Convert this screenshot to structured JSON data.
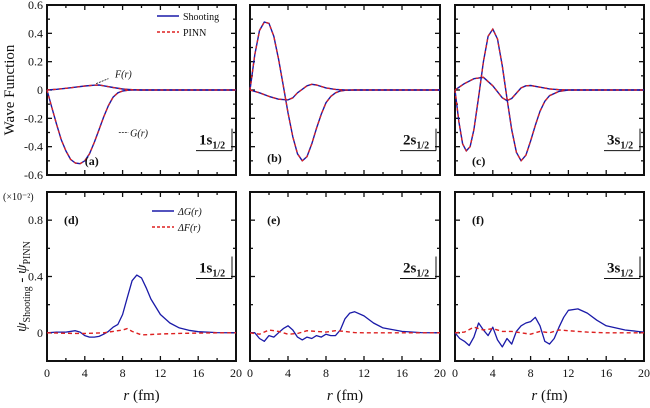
{
  "chart_data": [
    {
      "id": "a",
      "type": "line",
      "panel_label": "(a)",
      "state": "1s",
      "state_sub": "1/2",
      "xlim": [
        0,
        20
      ],
      "ylim": [
        -0.6,
        0.6
      ],
      "xticks": [
        0,
        4,
        8,
        12,
        16,
        20
      ],
      "yticks": [
        -0.6,
        -0.4,
        -0.2,
        0,
        0.2,
        0.4,
        0.6
      ],
      "ytick_labels": [
        "-0.6",
        "-0.4",
        "-0.2",
        "0",
        "0.2",
        "0.4",
        "0.6"
      ],
      "ylabel": "Wave Function",
      "legend": [
        "Shooting",
        "PINN"
      ],
      "annotations": [
        "F(r)",
        "G(r)"
      ],
      "series": [
        {
          "name": "G(r)",
          "x": [
            0,
            0.5,
            1,
            1.5,
            2,
            2.5,
            3,
            3.5,
            4,
            4.5,
            5,
            5.5,
            6,
            6.5,
            7,
            7.5,
            8,
            8.5,
            9,
            10,
            12,
            20
          ],
          "y": [
            0,
            -0.12,
            -0.24,
            -0.35,
            -0.43,
            -0.49,
            -0.515,
            -0.52,
            -0.5,
            -0.45,
            -0.37,
            -0.28,
            -0.19,
            -0.11,
            -0.05,
            -0.02,
            -0.007,
            -0.002,
            0,
            0,
            0,
            0
          ]
        },
        {
          "name": "F(r)",
          "x": [
            0,
            1,
            2,
            3,
            4,
            5,
            5.5,
            6,
            7,
            8,
            9,
            10,
            12,
            20
          ],
          "y": [
            0,
            0.005,
            0.012,
            0.02,
            0.028,
            0.034,
            0.035,
            0.03,
            0.018,
            0.007,
            0.002,
            0,
            0,
            0
          ]
        }
      ]
    },
    {
      "id": "b",
      "type": "line",
      "panel_label": "(b)",
      "state": "2s",
      "state_sub": "1/2",
      "xlim": [
        0,
        20
      ],
      "ylim": [
        -0.6,
        0.6
      ],
      "xticks": [
        0,
        4,
        8,
        12,
        16,
        20
      ],
      "yticks": [
        -0.6,
        -0.4,
        -0.2,
        0,
        0.2,
        0.4,
        0.6
      ],
      "series": [
        {
          "name": "G(r)",
          "x": [
            0,
            0.5,
            1,
            1.5,
            2,
            2.5,
            3,
            3.5,
            4,
            4.5,
            5,
            5.5,
            6,
            6.5,
            7,
            7.5,
            8,
            8.5,
            9,
            9.5,
            10,
            11,
            20
          ],
          "y": [
            0,
            0.25,
            0.42,
            0.48,
            0.47,
            0.38,
            0.22,
            0.03,
            -0.16,
            -0.33,
            -0.45,
            -0.5,
            -0.47,
            -0.38,
            -0.27,
            -0.17,
            -0.09,
            -0.045,
            -0.02,
            -0.007,
            -0.002,
            0,
            0
          ]
        },
        {
          "name": "F(r)",
          "x": [
            0,
            1,
            2,
            3,
            4,
            4.5,
            5,
            6,
            6.5,
            7,
            8,
            9,
            10,
            20
          ],
          "y": [
            0,
            -0.02,
            -0.045,
            -0.065,
            -0.07,
            -0.055,
            -0.02,
            0.03,
            0.04,
            0.035,
            0.015,
            0.004,
            0,
            0
          ]
        }
      ]
    },
    {
      "id": "c",
      "type": "line",
      "panel_label": "(c)",
      "state": "3s",
      "state_sub": "1/2",
      "xlim": [
        0,
        20
      ],
      "ylim": [
        -0.6,
        0.6
      ],
      "xticks": [
        0,
        4,
        8,
        12,
        16,
        20
      ],
      "yticks": [
        -0.6,
        -0.4,
        -0.2,
        0,
        0.2,
        0.4,
        0.6
      ],
      "series": [
        {
          "name": "G(r)",
          "x": [
            0,
            0.4,
            0.8,
            1.2,
            1.6,
            2,
            2.5,
            3,
            3.5,
            4,
            4.5,
            5,
            5.5,
            6,
            6.5,
            7,
            7.5,
            8,
            8.5,
            9,
            9.5,
            10,
            11,
            12,
            20
          ],
          "y": [
            0,
            -0.22,
            -0.38,
            -0.43,
            -0.4,
            -0.28,
            -0.05,
            0.2,
            0.38,
            0.43,
            0.36,
            0.17,
            -0.06,
            -0.28,
            -0.44,
            -0.5,
            -0.46,
            -0.36,
            -0.25,
            -0.15,
            -0.08,
            -0.04,
            -0.01,
            0,
            0
          ]
        },
        {
          "name": "F(r)",
          "x": [
            0,
            1,
            2,
            3,
            4,
            5,
            5.5,
            6,
            7,
            7.5,
            8,
            9,
            10,
            11,
            12,
            20
          ],
          "y": [
            0,
            0.045,
            0.08,
            0.09,
            0.03,
            -0.055,
            -0.075,
            -0.06,
            0.015,
            0.03,
            0.032,
            0.02,
            0.008,
            0.002,
            0,
            0
          ]
        }
      ]
    },
    {
      "id": "d",
      "type": "line",
      "panel_label": "(d)",
      "state": "1s",
      "state_sub": "1/2",
      "xlim": [
        0,
        20
      ],
      "ylim": [
        -0.2,
        1.0
      ],
      "xticks": [
        0,
        4,
        8,
        12,
        16,
        20
      ],
      "yticks": [
        0,
        0.4,
        0.8
      ],
      "ytick_labels": [
        "0",
        "0.4",
        "0.8"
      ],
      "xlabel": "r (fm)",
      "ylabel": "ψShooting - ψPINN",
      "scale_note": "(×10⁻²)",
      "legend": [
        "ΔG(r)",
        "ΔF(r)"
      ],
      "series": [
        {
          "name": "ΔG(r)",
          "x": [
            0,
            1,
            2,
            3,
            3.5,
            4,
            4.5,
            5,
            5.5,
            6,
            6.5,
            7,
            7.5,
            8,
            8.5,
            9,
            9.5,
            10,
            10.5,
            11,
            12,
            13,
            14,
            15,
            16,
            18,
            20
          ],
          "y": [
            0,
            0.005,
            0.005,
            0.015,
            0.005,
            -0.02,
            -0.03,
            -0.03,
            -0.025,
            -0.01,
            0.01,
            0.04,
            0.06,
            0.13,
            0.25,
            0.37,
            0.41,
            0.39,
            0.32,
            0.24,
            0.13,
            0.07,
            0.035,
            0.018,
            0.008,
            0.002,
            0
          ]
        },
        {
          "name": "ΔF(r)",
          "x": [
            0,
            2,
            4,
            6,
            7,
            8,
            8.5,
            9,
            10,
            11,
            12,
            14,
            16,
            18,
            20
          ],
          "y": [
            0,
            -0.003,
            -0.005,
            0,
            0.01,
            0.02,
            0.03,
            0.01,
            -0.015,
            -0.012,
            -0.008,
            -0.004,
            -0.002,
            0,
            0
          ]
        }
      ]
    },
    {
      "id": "e",
      "type": "line",
      "panel_label": "(e)",
      "state": "2s",
      "state_sub": "1/2",
      "xlim": [
        0,
        20
      ],
      "ylim": [
        -0.2,
        1.0
      ],
      "xticks": [
        0,
        4,
        8,
        12,
        16,
        20
      ],
      "yticks": [
        0,
        0.4,
        0.8
      ],
      "xlabel": "r (fm)",
      "series": [
        {
          "name": "ΔG(r)",
          "x": [
            0,
            0.5,
            1,
            1.5,
            2,
            2.5,
            3,
            3.5,
            4,
            4.5,
            5,
            5.5,
            6,
            6.5,
            7,
            7.5,
            8,
            8.5,
            9,
            9.5,
            10,
            10.5,
            11,
            12,
            13,
            14,
            16,
            18,
            20
          ],
          "y": [
            0,
            0,
            -0.04,
            -0.06,
            -0.02,
            -0.03,
            0,
            0.03,
            0.05,
            0.02,
            -0.03,
            -0.05,
            -0.03,
            -0.04,
            -0.02,
            -0.03,
            -0.01,
            -0.02,
            -0.02,
            0.02,
            0.1,
            0.14,
            0.15,
            0.12,
            0.07,
            0.035,
            0.01,
            0.002,
            0
          ]
        },
        {
          "name": "ΔF(r)",
          "x": [
            0,
            1,
            2,
            3,
            4,
            5,
            6,
            7,
            8,
            9,
            10,
            11,
            12,
            14,
            16,
            20
          ],
          "y": [
            0,
            -0.01,
            0.02,
            0.01,
            -0.01,
            -0.005,
            0.015,
            0.01,
            0.005,
            0.015,
            0.01,
            0.002,
            0,
            0,
            0,
            0
          ]
        }
      ]
    },
    {
      "id": "f",
      "type": "line",
      "panel_label": "(f)",
      "state": "3s",
      "state_sub": "1/2",
      "xlim": [
        0,
        20
      ],
      "ylim": [
        -0.2,
        1.0
      ],
      "xticks": [
        0,
        4,
        8,
        12,
        16,
        20
      ],
      "yticks": [
        0,
        0.4,
        0.8
      ],
      "xlabel": "r (fm)",
      "series": [
        {
          "name": "ΔG(r)",
          "x": [
            0,
            0.5,
            1,
            1.5,
            2,
            2.5,
            3,
            3.5,
            4,
            4.5,
            5,
            5.5,
            6,
            6.5,
            7,
            7.5,
            8,
            8.5,
            9,
            9.5,
            10,
            10.5,
            11,
            11.5,
            12,
            13,
            14,
            15,
            16,
            18,
            20
          ],
          "y": [
            0,
            -0.04,
            -0.06,
            -0.09,
            -0.03,
            0.07,
            0.02,
            -0.02,
            0.04,
            -0.05,
            -0.1,
            -0.04,
            -0.08,
            0.01,
            0.05,
            0.07,
            0.08,
            0.11,
            0.05,
            -0.06,
            -0.08,
            -0.04,
            0.04,
            0.11,
            0.16,
            0.17,
            0.14,
            0.09,
            0.05,
            0.02,
            0.005
          ]
        },
        {
          "name": "ΔF(r)",
          "x": [
            0,
            1,
            2,
            3,
            4,
            5,
            6,
            7,
            8,
            9,
            10,
            11,
            12,
            14,
            16,
            20
          ],
          "y": [
            0,
            0.005,
            0.04,
            0.02,
            0.03,
            0.01,
            0.01,
            0.0,
            -0.01,
            0.01,
            0.0,
            0.02,
            0.015,
            0.005,
            0,
            0
          ]
        }
      ]
    }
  ],
  "colors": {
    "shooting": "#1a1aa8",
    "pinn": "#dd2020",
    "axis": "#111111"
  }
}
